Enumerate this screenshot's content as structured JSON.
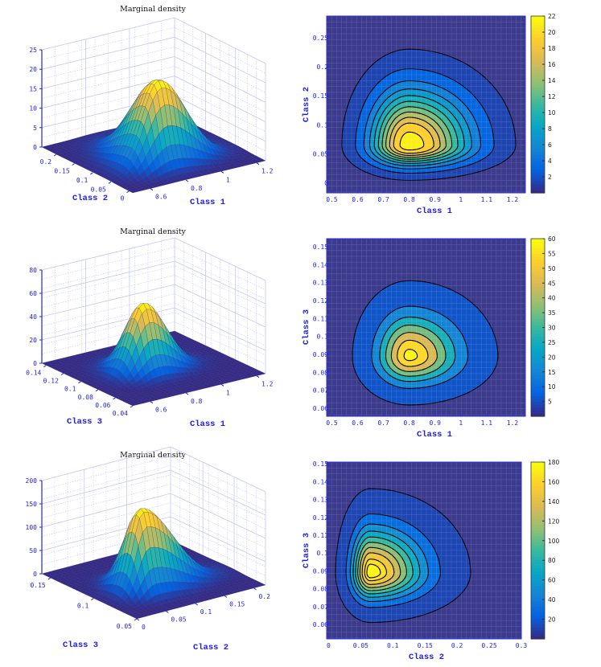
{
  "chart_data": [
    {
      "type": "surface",
      "title": "Marginal density",
      "xlabel": "Class 1",
      "ylabel": "Class 2",
      "xlim": [
        0.5,
        1.25
      ],
      "ylim": [
        -0.01,
        0.24
      ],
      "zlim": [
        0,
        25
      ],
      "xticks": [
        "0.6",
        "0.8",
        "1",
        "1.2"
      ],
      "xtick_values": [
        0.6,
        0.8,
        1.0,
        1.2
      ],
      "yticks": [
        "0",
        "0.05",
        "0.1",
        "0.15",
        "0.2"
      ],
      "ytick_values": [
        0,
        0.05,
        0.1,
        0.15,
        0.2
      ],
      "zticks": [
        "0",
        "5",
        "10",
        "15",
        "20",
        "25"
      ],
      "ztick_values": [
        0,
        5,
        10,
        15,
        20,
        25
      ],
      "density_model": {
        "peak": 22,
        "mode": [
          0.8,
          0.065
        ],
        "sx": [
          0.095,
          0.15
        ],
        "sy": [
          0.022,
          0.06
        ]
      }
    },
    {
      "type": "contour",
      "xlabel": "Class   1",
      "ylabel": "Class  2",
      "xlim": [
        0.48,
        1.25
      ],
      "ylim": [
        -0.017,
        0.287
      ],
      "xticks": [
        "0.5",
        "0.6",
        "0.7",
        "0.8",
        "0.9",
        "1",
        "1.1",
        "1.2"
      ],
      "xtick_values": [
        0.5,
        0.6,
        0.7,
        0.8,
        0.9,
        1.0,
        1.1,
        1.2
      ],
      "yticks": [
        "0",
        "0.05",
        "0.1",
        "0.15",
        "0.2",
        "0.25"
      ],
      "ytick_values": [
        0,
        0.05,
        0.1,
        0.15,
        0.2,
        0.25
      ],
      "levels": [
        0.5,
        2,
        4,
        6,
        8,
        10,
        12,
        14,
        16,
        18,
        20.5
      ],
      "colorbar": {
        "range": [
          0,
          22
        ],
        "ticks": [
          "2",
          "4",
          "6",
          "8",
          "10",
          "12",
          "14",
          "16",
          "18",
          "20",
          "22"
        ],
        "tick_values": [
          2,
          4,
          6,
          8,
          10,
          12,
          14,
          16,
          18,
          20,
          22
        ]
      },
      "density_model": {
        "peak": 22,
        "mode": [
          0.8,
          0.065
        ],
        "sx": [
          0.095,
          0.15
        ],
        "sy": [
          0.022,
          0.06
        ]
      }
    },
    {
      "type": "surface",
      "title": "Marginal density",
      "xlabel": "Class 1",
      "ylabel": "Class 3",
      "xlim": [
        0.5,
        1.25
      ],
      "ylim": [
        0.04,
        0.145
      ],
      "zlim": [
        0,
        80
      ],
      "xticks": [
        "0.6",
        "0.8",
        "1",
        "1.2"
      ],
      "xtick_values": [
        0.6,
        0.8,
        1.0,
        1.2
      ],
      "yticks": [
        "0.04",
        "0.06",
        "0.08",
        "0.1",
        "0.12",
        "0.14"
      ],
      "ytick_values": [
        0.04,
        0.06,
        0.08,
        0.1,
        0.12,
        0.14
      ],
      "zticks": [
        "0",
        "20",
        "40",
        "60",
        "80"
      ],
      "ztick_values": [
        0,
        20,
        40,
        60,
        80
      ],
      "density_model": {
        "peak": 60,
        "mode": [
          0.8,
          0.089
        ],
        "sx": [
          0.077,
          0.12
        ],
        "sy": [
          0.0095,
          0.0147
        ]
      }
    },
    {
      "type": "contour",
      "xlabel": "Class   1",
      "ylabel": "Class  3",
      "xlim": [
        0.48,
        1.25
      ],
      "ylim": [
        0.0555,
        0.1545
      ],
      "xticks": [
        "0.5",
        "0.6",
        "0.7",
        "0.8",
        "0.9",
        "1",
        "1.1",
        "1.2"
      ],
      "xtick_values": [
        0.5,
        0.6,
        0.7,
        0.8,
        0.9,
        1.0,
        1.1,
        1.2
      ],
      "yticks": [
        "0.06",
        "0.07",
        "0.08",
        "0.09",
        "0.1",
        "0.11",
        "0.12",
        "0.13",
        "0.14",
        "0.15"
      ],
      "ytick_values": [
        0.06,
        0.07,
        0.08,
        0.09,
        0.1,
        0.11,
        0.12,
        0.13,
        0.14,
        0.15
      ],
      "levels": [
        1,
        10,
        20,
        30,
        40,
        50,
        58
      ],
      "colorbar": {
        "range": [
          0,
          60
        ],
        "ticks": [
          "5",
          "10",
          "15",
          "20",
          "25",
          "30",
          "35",
          "40",
          "45",
          "50",
          "55",
          "60"
        ],
        "tick_values": [
          5,
          10,
          15,
          20,
          25,
          30,
          35,
          40,
          45,
          50,
          55,
          60
        ]
      },
      "density_model": {
        "peak": 60,
        "mode": [
          0.8,
          0.089
        ],
        "sx": [
          0.077,
          0.12
        ],
        "sy": [
          0.0095,
          0.0147
        ]
      }
    },
    {
      "type": "surface",
      "title": "Marginal density",
      "xlabel": "Class 2",
      "ylabel": "Class 3",
      "xlim": [
        0,
        0.22
      ],
      "ylim": [
        0.05,
        0.16
      ],
      "zlim": [
        0,
        200
      ],
      "xticks": [
        "0",
        "0.05",
        "0.1",
        "0.15",
        "0.2"
      ],
      "xtick_values": [
        0,
        0.05,
        0.1,
        0.15,
        0.2
      ],
      "yticks": [
        "0.05",
        "0.1",
        "0.15"
      ],
      "ytick_values": [
        0.05,
        0.1,
        0.15
      ],
      "zticks": [
        "0",
        "50",
        "100",
        "150",
        "200"
      ],
      "ztick_values": [
        0,
        50,
        100,
        150,
        200
      ],
      "density_model": {
        "peak": 180,
        "mode": [
          0.065,
          0.089
        ],
        "sx": [
          0.018,
          0.052
        ],
        "sy": [
          0.0093,
          0.0157
        ]
      }
    },
    {
      "type": "contour",
      "xlabel": "Class   2",
      "ylabel": "Class  3",
      "xlim": [
        -0.003,
        0.3
      ],
      "ylim": [
        0.0519,
        0.151
      ],
      "xticks": [
        "0",
        "0.05",
        "0.1",
        "0.15",
        "0.2",
        "0.25",
        "0.3"
      ],
      "xtick_values": [
        0,
        0.05,
        0.1,
        0.15,
        0.2,
        0.25,
        0.3
      ],
      "yticks": [
        "0.06",
        "0.07",
        "0.08",
        "0.09",
        "0.1",
        "0.11",
        "0.12",
        "0.13",
        "0.14",
        "0.15"
      ],
      "ytick_values": [
        0.06,
        0.07,
        0.08,
        0.09,
        0.1,
        0.11,
        0.12,
        0.13,
        0.14,
        0.15
      ],
      "levels": [
        2,
        20,
        40,
        60,
        80,
        100,
        120,
        140,
        160,
        172
      ],
      "colorbar": {
        "range": [
          0,
          180
        ],
        "ticks": [
          "20",
          "40",
          "60",
          "80",
          "100",
          "120",
          "140",
          "160",
          "180"
        ],
        "tick_values": [
          20,
          40,
          60,
          80,
          100,
          120,
          140,
          160,
          180
        ]
      },
      "density_model": {
        "peak": 180,
        "mode": [
          0.065,
          0.089
        ],
        "sx": [
          0.018,
          0.052
        ],
        "sy": [
          0.0093,
          0.0157
        ]
      }
    }
  ],
  "colors": {
    "colormap": [
      "#352a87",
      "#0363e1",
      "#1485d4",
      "#06a7c6",
      "#38b99e",
      "#92bf73",
      "#d9ba56",
      "#fcce2e",
      "#f9fb0e"
    ],
    "axis": "#2424e6",
    "wall_grid": "#c8c8f4"
  }
}
